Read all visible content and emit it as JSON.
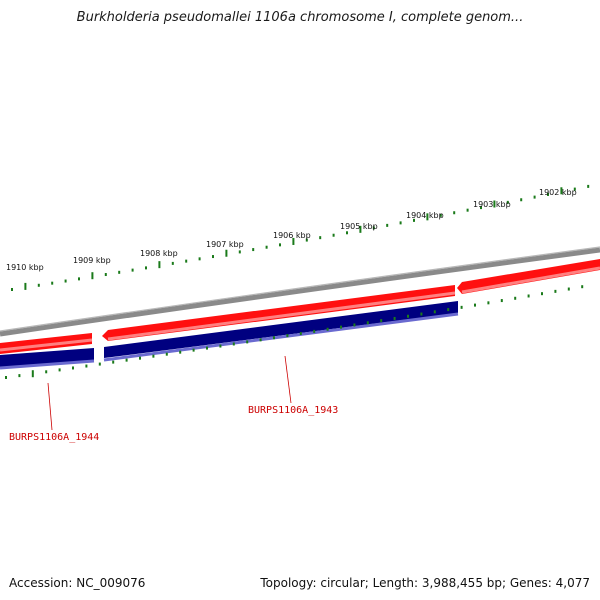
{
  "title": "Burkholderia pseudomallei 1106a chromosome I, complete genom...",
  "footer": {
    "accession": "Accession: NC_009076",
    "summary": "Topology: circular; Length: 3,988,455 bp; Genes: 4,077"
  },
  "ruler_labels": [
    "1910 kbp",
    "1909 kbp",
    "1908 kbp",
    "1907 kbp",
    "1906 kbp",
    "1905 kbp",
    "1904 kbp",
    "1903 kbp",
    "1902 kbp"
  ],
  "genes": [
    {
      "label": "BURPS1106A_1944",
      "color": "#cc0000"
    },
    {
      "label": "BURPS1106A_1943",
      "color": "#cc0000"
    }
  ],
  "colors": {
    "backbone": "#808080",
    "forward_strand": "#ff0000",
    "reverse_strand": "#000080",
    "tick": "#1a7a1a",
    "label": "#cc0000"
  }
}
